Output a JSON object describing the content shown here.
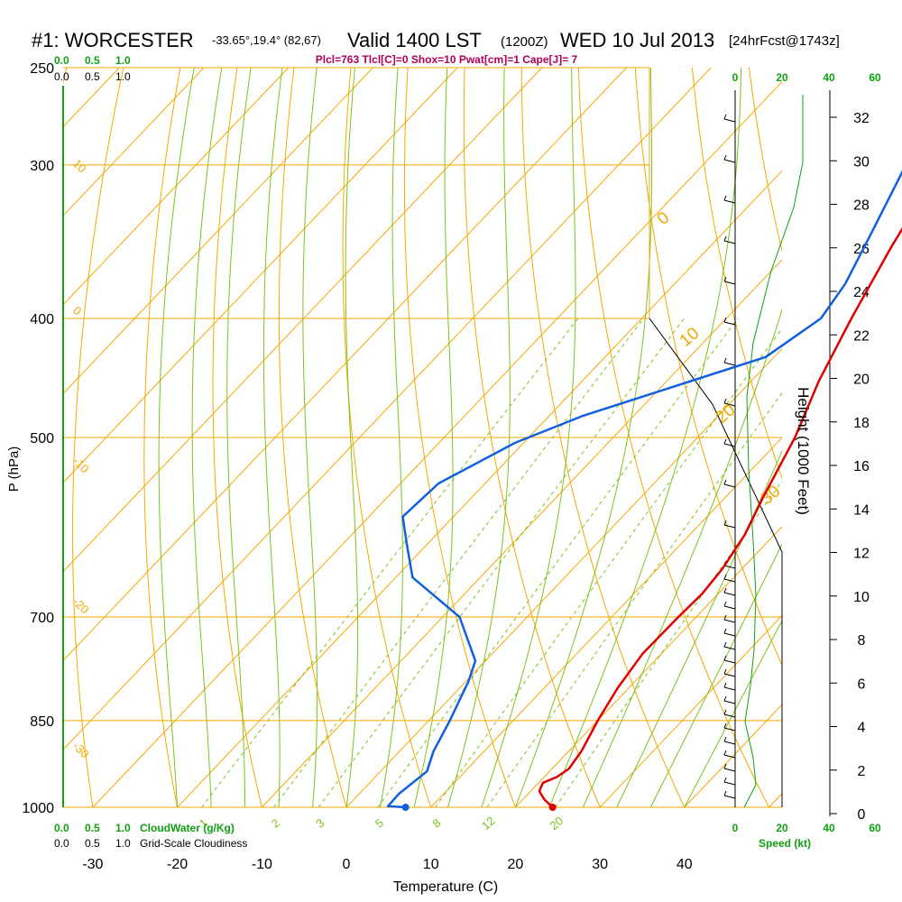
{
  "header": {
    "station": "#1: WORCESTER",
    "coords": "-33.65°,19.4° (82,67)",
    "valid": "Valid 1400 LST",
    "utc": "(1200Z)",
    "date": "WED 10 Jul 2013",
    "forecast": "[24hrFcst@1743z]",
    "indices": "Plcl=763 Tlcl[C]=0 Shox=10 Pwat[cm]=1 Cape[J]= 7"
  },
  "colors": {
    "isotherm": "#f5a800",
    "dry_adiabat": "#f5a800",
    "moist_adiabat": "#7ec21a",
    "mixing_ratio": "#7ec21a",
    "temperature": "#e00000",
    "dewpoint": "#1060e0",
    "cloud_scale": "#10a010",
    "index_text": "#b0005a",
    "wind_speed": "#10a010"
  },
  "chart_data": {
    "type": "line",
    "xlabel": "Temperature (C)",
    "ylabel": "P (hPa)",
    "y2label": "Height (1000 Feet)",
    "x_ticks": [
      -30,
      -20,
      -10,
      0,
      10,
      20,
      30,
      40
    ],
    "p_ticks": [
      250,
      300,
      400,
      500,
      700,
      850,
      1000
    ],
    "height_ticks": [
      0,
      2,
      4,
      6,
      8,
      10,
      12,
      14,
      16,
      18,
      20,
      22,
      24,
      26,
      28,
      30,
      32
    ],
    "cloud_scale_top": [
      "0.0",
      "0.5",
      "1.0"
    ],
    "cloud_scale_top2": [
      "0.0",
      "0.5",
      "1.0"
    ],
    "cloud_scale_bottom": [
      "0.0",
      "0.5",
      "1.0"
    ],
    "cloudwater_label": "CloudWater (g/Kg)",
    "cloudiness_label": "Grid-Scale Cloudiness",
    "speed_ticks_top": [
      "0",
      "20",
      "40",
      "60"
    ],
    "speed_ticks_bottom": [
      "0",
      "20",
      "40",
      "60"
    ],
    "speed_label": "Speed (kt)",
    "isotherm_labels": [
      "10",
      "0",
      "-10",
      "-20",
      "-30"
    ],
    "dry_adiabat_labels": [
      "0",
      "10",
      "20",
      "30"
    ],
    "mixing_ratio_labels": [
      "1",
      "2",
      "3",
      "5",
      "8",
      "12",
      "20"
    ],
    "temperature": [
      {
        "p": 1000,
        "t": 24.4
      },
      {
        "p": 985,
        "t": 22.5
      },
      {
        "p": 970,
        "t": 21.0
      },
      {
        "p": 955,
        "t": 20.5
      },
      {
        "p": 945,
        "t": 21.5
      },
      {
        "p": 930,
        "t": 22.0
      },
      {
        "p": 900,
        "t": 21.5
      },
      {
        "p": 850,
        "t": 20.0
      },
      {
        "p": 800,
        "t": 18.7
      },
      {
        "p": 750,
        "t": 17.8
      },
      {
        "p": 700,
        "t": 17.9
      },
      {
        "p": 670,
        "t": 18.1
      },
      {
        "p": 640,
        "t": 17.7
      },
      {
        "p": 600,
        "t": 16.5
      },
      {
        "p": 560,
        "t": 14.5
      },
      {
        "p": 500,
        "t": 11.5
      },
      {
        "p": 450,
        "t": 8.0
      },
      {
        "p": 400,
        "t": 4.8
      },
      {
        "p": 350,
        "t": 1.5
      },
      {
        "p": 300,
        "t": -1.8
      },
      {
        "p": 270,
        "t": -3.9
      }
    ],
    "dewpoint": [
      {
        "p": 1000,
        "t": 7.0
      },
      {
        "p": 998,
        "t": 4.8
      },
      {
        "p": 975,
        "t": 4.7
      },
      {
        "p": 935,
        "t": 5.5
      },
      {
        "p": 900,
        "t": 4.0
      },
      {
        "p": 850,
        "t": 2.5
      },
      {
        "p": 790,
        "t": 0.3
      },
      {
        "p": 760,
        "t": -1.2
      },
      {
        "p": 700,
        "t": -8.0
      },
      {
        "p": 650,
        "t": -18.0
      },
      {
        "p": 610,
        "t": -22.5
      },
      {
        "p": 580,
        "t": -26.0
      },
      {
        "p": 545,
        "t": -25.5
      },
      {
        "p": 505,
        "t": -21.0
      },
      {
        "p": 480,
        "t": -16.0
      },
      {
        "p": 430,
        "t": -1.0
      },
      {
        "p": 400,
        "t": 1.2
      },
      {
        "p": 375,
        "t": 0.2
      },
      {
        "p": 340,
        "t": -2.5
      },
      {
        "p": 300,
        "t": -6.0
      },
      {
        "p": 270,
        "t": -9.2
      }
    ],
    "surface_temperature": 24.4,
    "surface_dewpoint": 7.0,
    "cloudwater_profile": [
      {
        "p": 270,
        "v": 0.0
      },
      {
        "p": 1000,
        "v": 0.0
      }
    ]
  }
}
